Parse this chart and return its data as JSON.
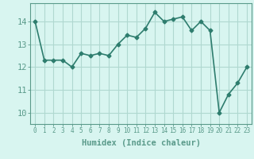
{
  "x": [
    0,
    1,
    2,
    3,
    4,
    5,
    6,
    7,
    8,
    9,
    10,
    11,
    12,
    13,
    14,
    15,
    16,
    17,
    18,
    19,
    20,
    21,
    22,
    23
  ],
  "y": [
    14.0,
    12.3,
    12.3,
    12.3,
    12.0,
    12.6,
    12.5,
    12.6,
    12.5,
    13.0,
    13.4,
    13.3,
    13.7,
    14.4,
    14.0,
    14.1,
    14.2,
    13.6,
    14.0,
    13.6,
    10.0,
    10.8,
    11.3,
    12.0
  ],
  "line_color": "#2e7d6e",
  "marker": "D",
  "marker_size": 2.5,
  "bg_color": "#d8f5f0",
  "grid_color": "#b0d8d0",
  "xlabel": "Humidex (Indice chaleur)",
  "ylim": [
    9.5,
    14.8
  ],
  "xlim": [
    -0.5,
    23.5
  ],
  "yticks": [
    10,
    11,
    12,
    13,
    14
  ],
  "xticks": [
    0,
    1,
    2,
    3,
    4,
    5,
    6,
    7,
    8,
    9,
    10,
    11,
    12,
    13,
    14,
    15,
    16,
    17,
    18,
    19,
    20,
    21,
    22,
    23
  ],
  "xlabel_fontsize": 7.5,
  "ytick_fontsize": 7.5,
  "xtick_fontsize": 5.5,
  "linewidth": 1.2,
  "spine_color": "#5a9a8a",
  "tick_color": "#5a9a8a"
}
